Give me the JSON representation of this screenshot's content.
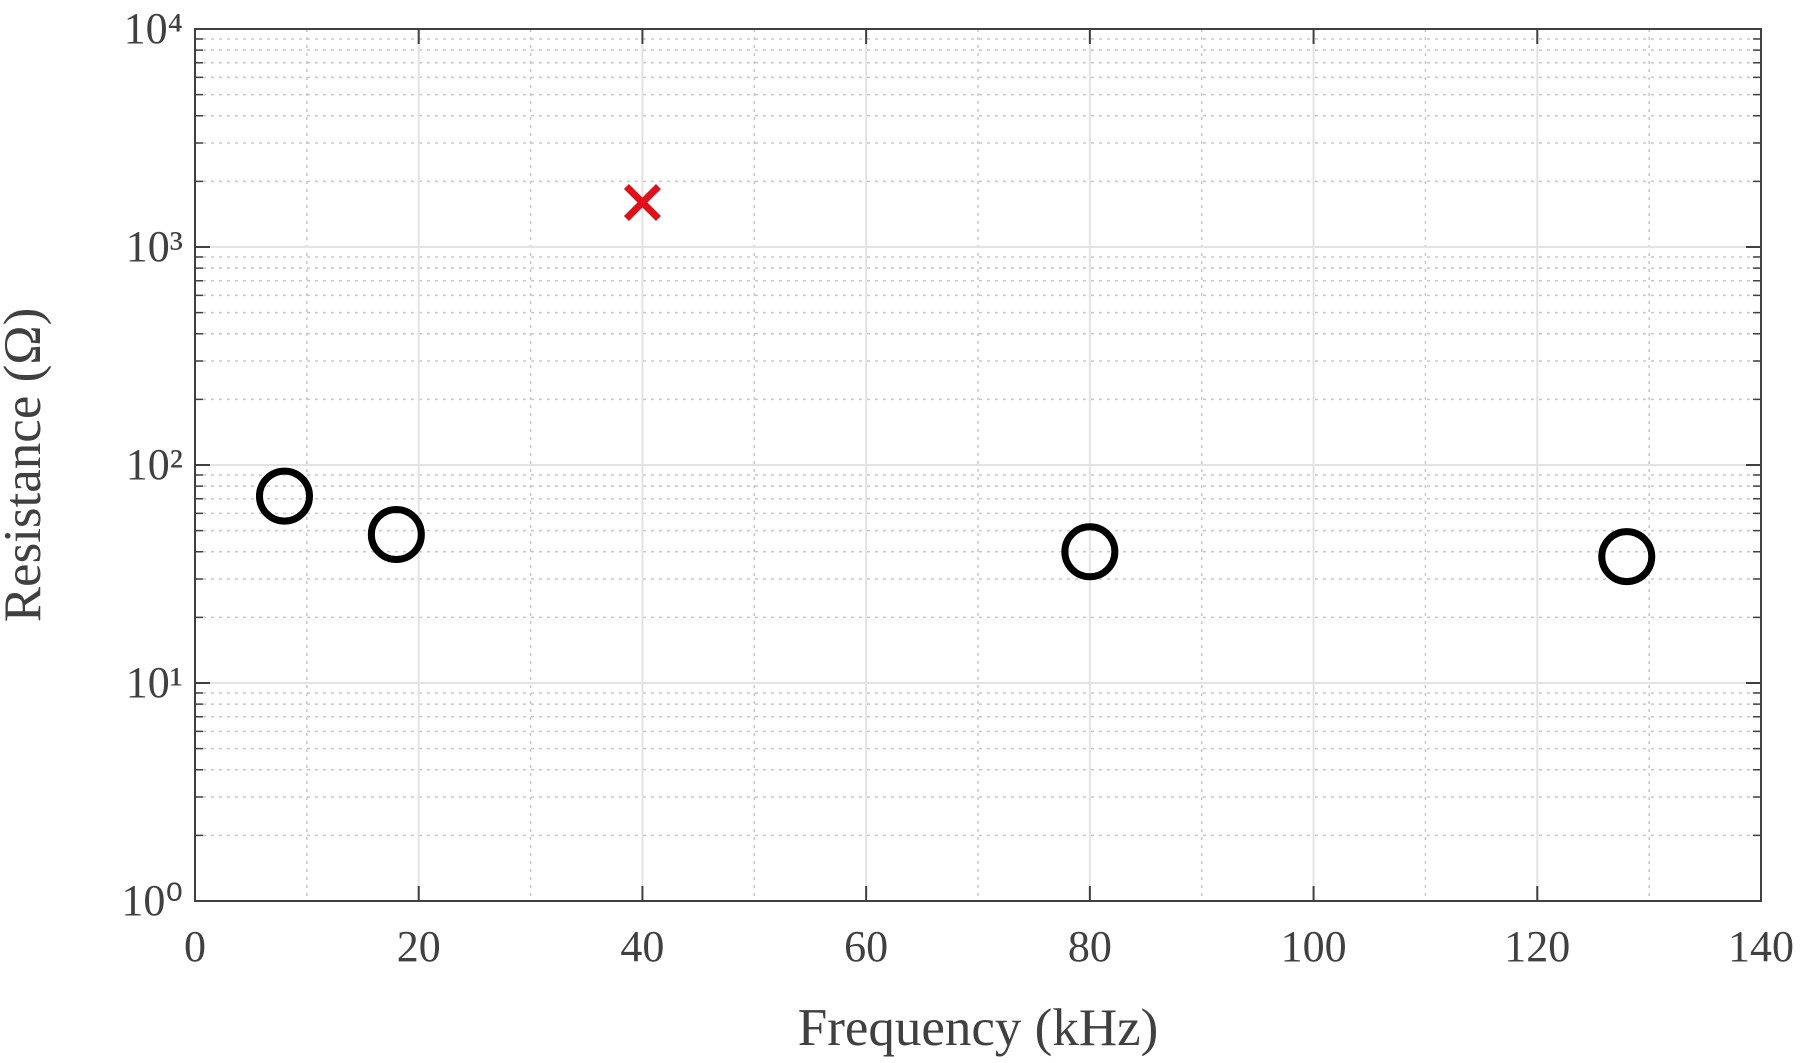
{
  "chart_data": {
    "type": "scatter",
    "xlabel": "Frequency (kHz)",
    "ylabel": "Resistance (Ω)",
    "xlim": [
      0,
      140
    ],
    "xticks": [
      0,
      20,
      40,
      60,
      80,
      100,
      120,
      140
    ],
    "ylim": [
      1,
      10000
    ],
    "yscale": "log",
    "yticks": [
      {
        "value": 1,
        "label": "10⁰"
      },
      {
        "value": 10,
        "label": "10¹"
      },
      {
        "value": 100,
        "label": "10²"
      },
      {
        "value": 1000,
        "label": "10³"
      },
      {
        "value": 10000,
        "label": "10⁴"
      }
    ],
    "grid": true,
    "minor_grid": true,
    "series": [
      {
        "color": "#000000",
        "marker": "o",
        "x": [
          8,
          18,
          80,
          128
        ],
        "values": [
          72,
          48,
          40,
          38
        ]
      },
      {
        "color": "#e0101a",
        "marker": "x",
        "x": [
          40
        ],
        "values": [
          1600
        ]
      }
    ]
  }
}
